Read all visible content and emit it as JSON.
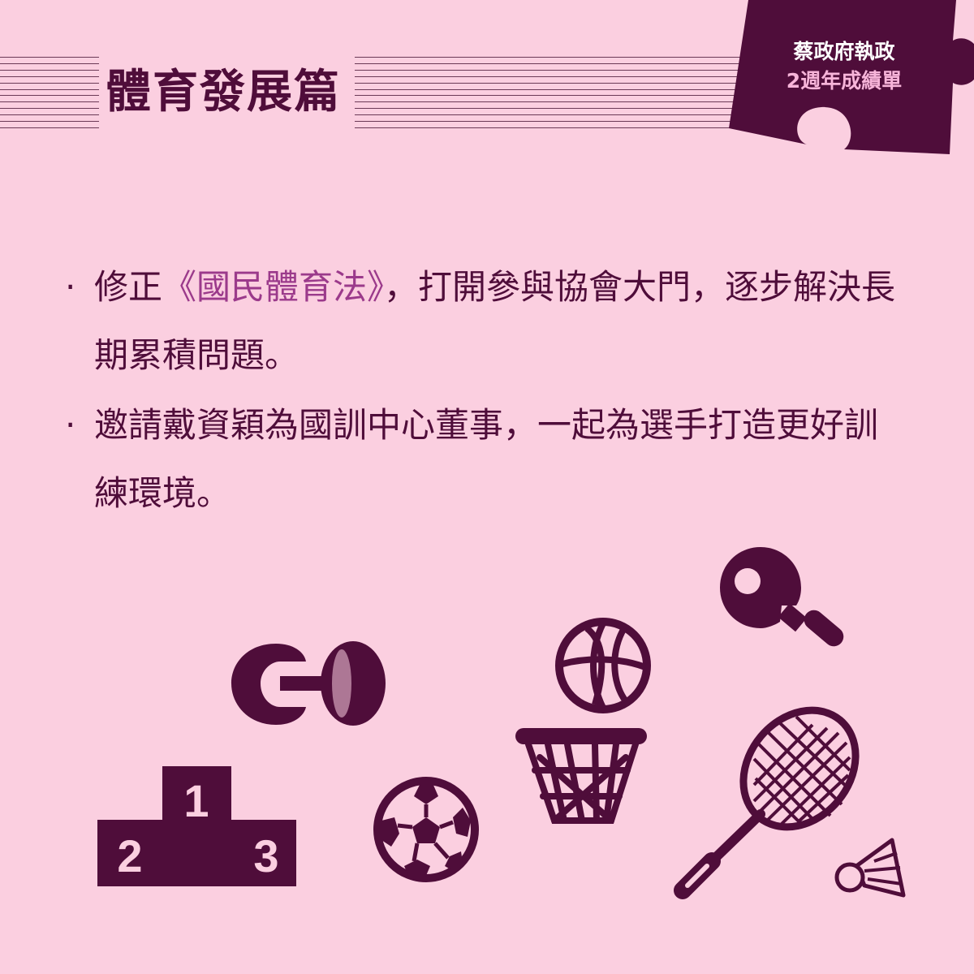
{
  "header": {
    "section_title": "體育發展篇"
  },
  "badge": {
    "line1": "蔡政府執政",
    "line2": "2週年成績單"
  },
  "bullets": [
    {
      "marker": "·",
      "before": "修正",
      "highlight": "《國民體育法》",
      "after": "，打開參與協會大門，逐步解決長期累積問題。"
    },
    {
      "marker": "·",
      "before": "邀請戴資穎為國訓中心董事，一起為選手打造更好訓練環境。",
      "highlight": "",
      "after": ""
    }
  ],
  "podium": {
    "first": "1",
    "second": "2",
    "third": "3"
  },
  "icons": [
    "podium-icon",
    "dumbbell-icon",
    "soccer-ball-icon",
    "basketball-icon",
    "basketball-hoop-icon",
    "ping-pong-paddle-icon",
    "badminton-racket-icon",
    "shuttlecock-icon"
  ],
  "colors": {
    "background": "#fbcfe0",
    "primary": "#4f0d3a",
    "highlight": "#9b3a8b",
    "badge_accent": "#f7b4d9"
  }
}
